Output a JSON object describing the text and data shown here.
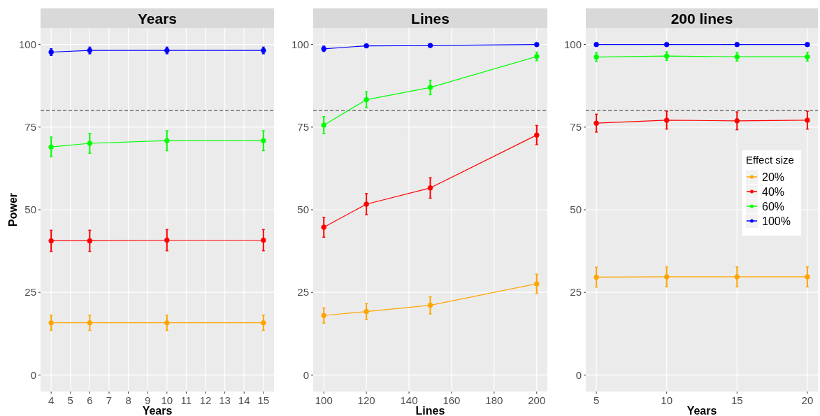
{
  "chart_data": [
    {
      "type": "line",
      "title": "Years",
      "xlabel": "Years",
      "ylabel": "Power",
      "x": [
        4,
        6,
        10,
        15
      ],
      "xlim": [
        3.45,
        15.55
      ],
      "xticks": [
        4,
        5,
        6,
        7,
        8,
        9,
        10,
        11,
        12,
        13,
        14,
        15
      ],
      "ylim": [
        -5,
        105
      ],
      "yticks": [
        0,
        25,
        50,
        75,
        100
      ],
      "grid": true,
      "marker": "circle",
      "legend": false,
      "ref_lines": [
        {
          "axis": "y",
          "value": 80,
          "line_style": "dashed",
          "color": "#595959"
        }
      ],
      "series": [
        {
          "color": "#ffa500",
          "values": [
            15.8,
            15.8,
            15.8,
            15.8
          ],
          "errors": [
            2.3,
            2.3,
            2.3,
            2.3
          ]
        },
        {
          "color": "#ff0000",
          "values": [
            40.6,
            40.6,
            40.8,
            40.8
          ],
          "errors": [
            3.2,
            3.2,
            3.2,
            3.2
          ]
        },
        {
          "color": "#00ff00",
          "values": [
            69,
            70.1,
            70.9,
            70.9
          ],
          "errors": [
            3,
            3,
            3,
            3
          ]
        },
        {
          "color": "#0000ff",
          "values": [
            97.7,
            98.2,
            98.2,
            98.2
          ],
          "errors": [
            1,
            1,
            1,
            1
          ]
        }
      ]
    },
    {
      "type": "line",
      "title": "Lines",
      "xlabel": "Lines",
      "x": [
        100,
        120,
        150,
        200
      ],
      "xlim": [
        95,
        205
      ],
      "xticks": [
        100,
        120,
        140,
        160,
        180,
        200
      ],
      "ylim": [
        -5,
        105
      ],
      "yticks": [
        0,
        25,
        50,
        75,
        100
      ],
      "grid": true,
      "marker": "circle",
      "legend": false,
      "ref_lines": [
        {
          "axis": "y",
          "value": 80,
          "line_style": "dashed",
          "color": "#595959"
        }
      ],
      "series": [
        {
          "color": "#ffa500",
          "values": [
            18,
            19.2,
            21.1,
            27.6
          ],
          "errors": [
            2.3,
            2.4,
            2.6,
            2.9
          ]
        },
        {
          "color": "#ff0000",
          "values": [
            44.7,
            51.7,
            56.6,
            72.6
          ],
          "errors": [
            3,
            3.2,
            3.1,
            2.9
          ]
        },
        {
          "color": "#00ff00",
          "values": [
            75.6,
            83.3,
            87,
            96.4
          ],
          "errors": [
            2.6,
            2.4,
            2.2,
            1.3
          ]
        },
        {
          "color": "#0000ff",
          "values": [
            98.7,
            99.6,
            99.7,
            100
          ],
          "errors": [
            0.8,
            0.4,
            0.4,
            null
          ]
        }
      ]
    },
    {
      "type": "line",
      "title": "200 lines",
      "xlabel": "Years",
      "x": [
        5,
        10,
        15,
        20
      ],
      "xlim": [
        4.25,
        20.75
      ],
      "xticks": [
        5,
        10,
        15,
        20
      ],
      "ylim": [
        -5,
        105
      ],
      "yticks": [
        0,
        25,
        50,
        75,
        100
      ],
      "grid": true,
      "marker": "circle",
      "legend": "right",
      "legend_title": "Effect size",
      "ref_lines": [
        {
          "axis": "y",
          "value": 80,
          "line_style": "dashed",
          "color": "#595959"
        }
      ],
      "series": [
        {
          "name": "20%",
          "color": "#ffa500",
          "values": [
            29.6,
            29.7,
            29.7,
            29.7
          ],
          "errors": [
            3,
            3,
            3,
            3
          ]
        },
        {
          "name": "40%",
          "color": "#ff0000",
          "values": [
            76.2,
            77.1,
            76.9,
            77.1
          ],
          "errors": [
            2.7,
            2.7,
            2.7,
            2.7
          ]
        },
        {
          "name": "60%",
          "color": "#00ff00",
          "values": [
            96.2,
            96.5,
            96.3,
            96.3
          ],
          "errors": [
            1.3,
            1.3,
            1.3,
            1.3
          ]
        },
        {
          "name": "100%",
          "color": "#0000ff",
          "values": [
            100,
            100,
            100,
            100
          ],
          "errors": [
            null,
            null,
            null,
            null
          ]
        }
      ]
    }
  ]
}
